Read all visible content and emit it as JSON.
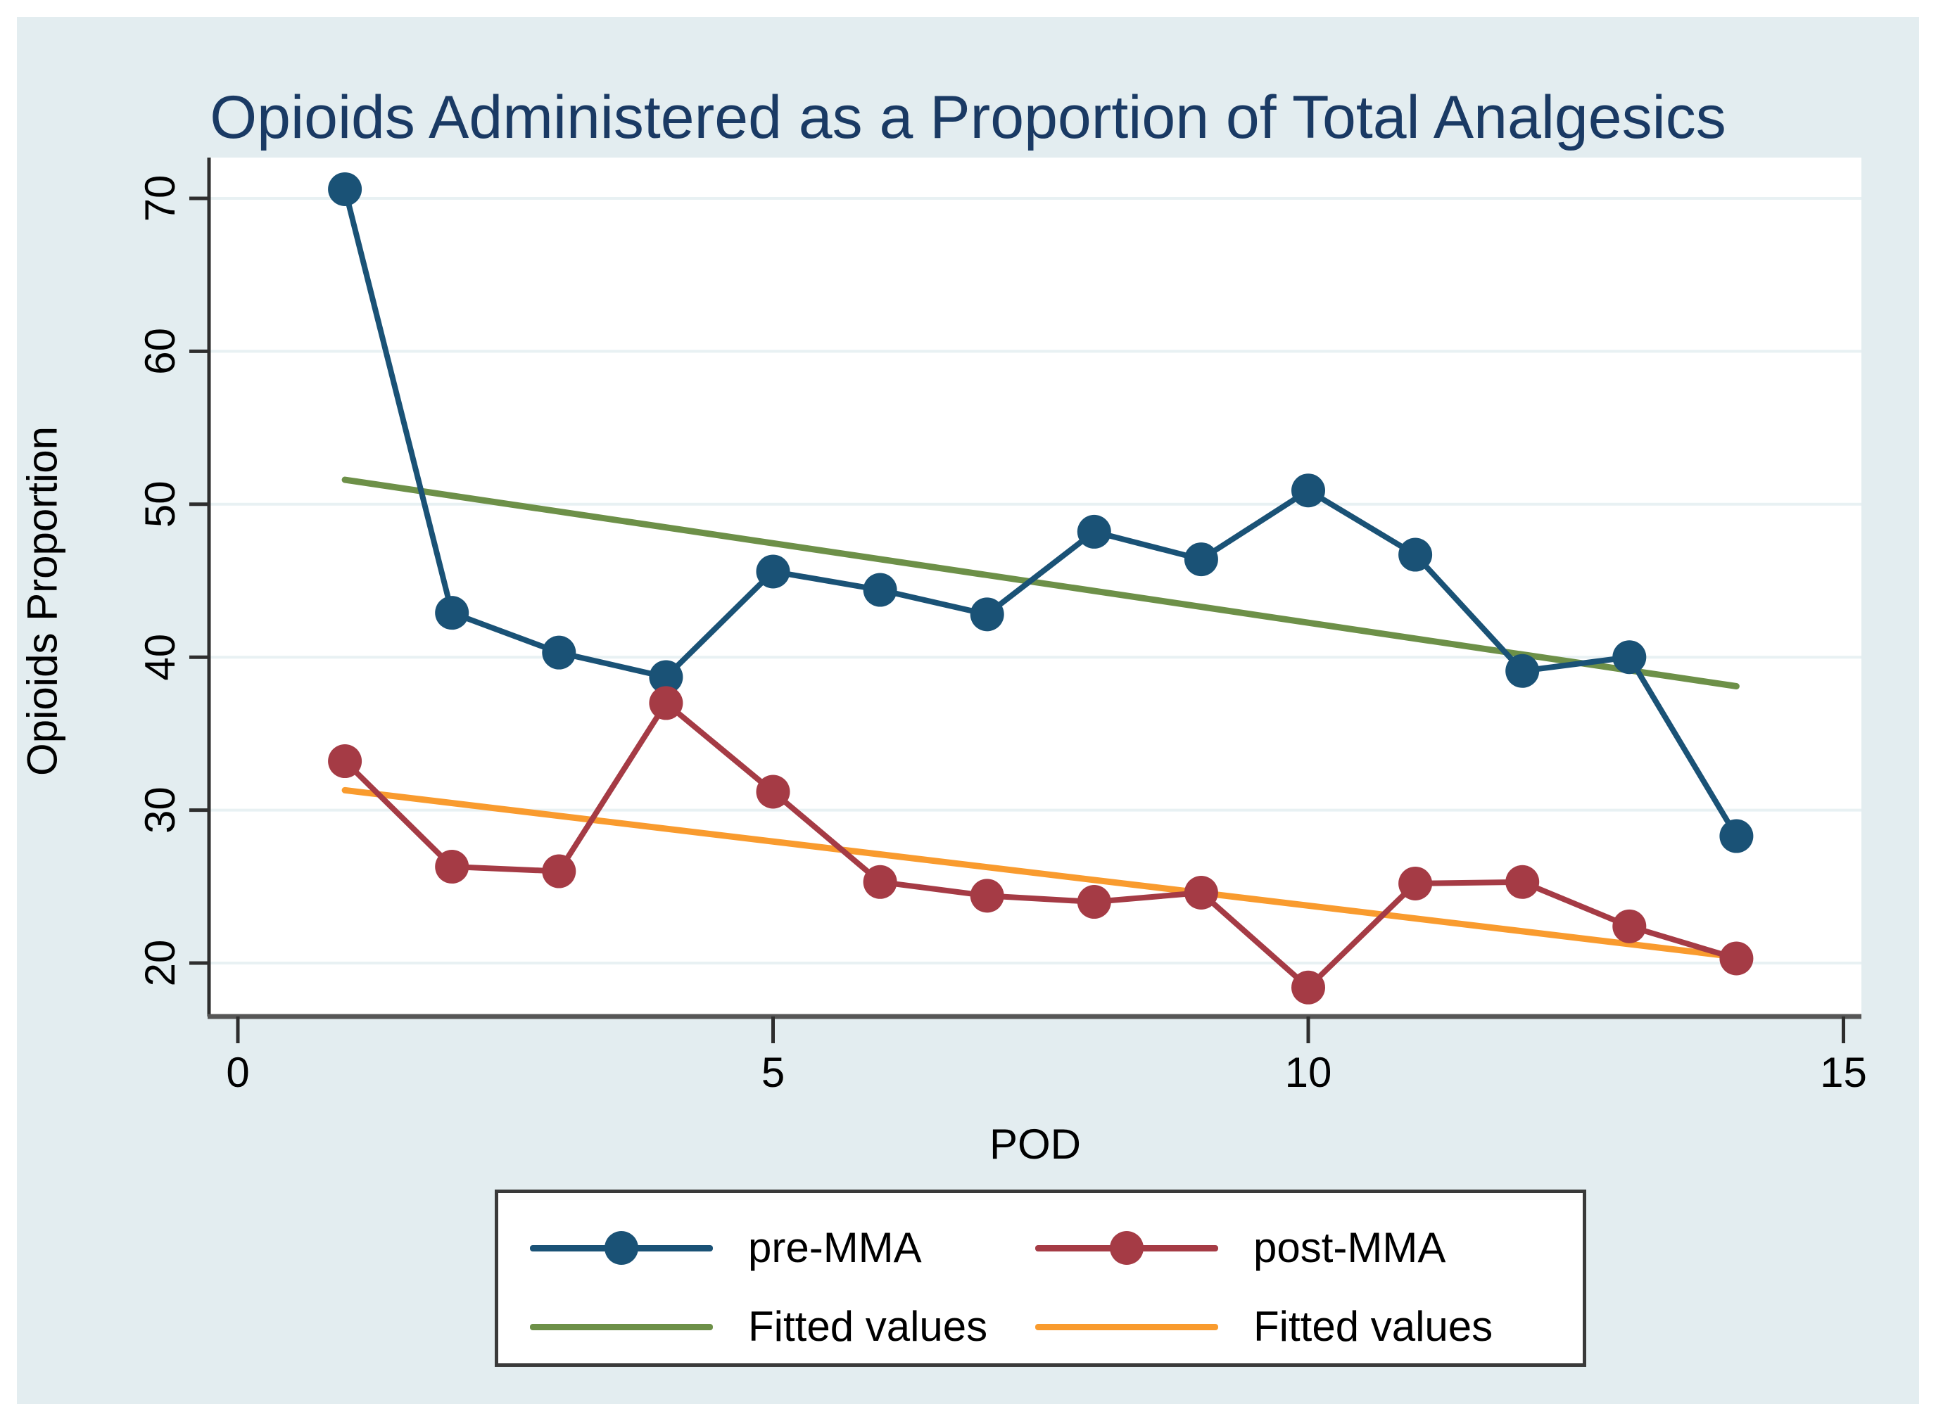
{
  "chart_data": {
    "type": "line",
    "title": "Opioids Administered as a Proportion of Total Analgesics",
    "xlabel": "POD",
    "ylabel": "Opioids Proportion",
    "xticks": [
      0,
      5,
      10,
      15
    ],
    "yticks": [
      20,
      30,
      40,
      50,
      60,
      70
    ],
    "xlim": [
      -0.3,
      15.2
    ],
    "ylim": [
      16.5,
      72.7
    ],
    "grid": "horizontal-only",
    "legend_position": "bottom",
    "x": [
      1,
      2,
      3,
      4,
      5,
      6,
      7,
      8,
      9,
      10,
      11,
      12,
      13,
      14
    ],
    "series": [
      {
        "name": "pre-MMA",
        "type": "line+marker",
        "color": "#1a5276",
        "values": [
          70.6,
          42.9,
          40.3,
          38.7,
          45.6,
          44.4,
          42.8,
          48.2,
          46.4,
          50.9,
          46.7,
          39.1,
          40.0,
          28.3
        ]
      },
      {
        "name": "post-MMA",
        "type": "line+marker",
        "color": "#a53b45",
        "values": [
          33.2,
          26.3,
          26.0,
          37.0,
          31.2,
          25.3,
          24.4,
          24.0,
          24.6,
          18.4,
          25.2,
          25.3,
          22.4,
          20.3
        ]
      },
      {
        "name": "Fitted values",
        "type": "line",
        "color": "#6d9048",
        "x": [
          1,
          14
        ],
        "values": [
          51.6,
          38.1
        ]
      },
      {
        "name": "Fitted values",
        "type": "line",
        "color": "#f99b2e",
        "x": [
          1,
          14
        ],
        "values": [
          31.3,
          20.4
        ]
      }
    ],
    "legend": [
      {
        "label": "pre-MMA",
        "color": "#1a5276",
        "marker": true
      },
      {
        "label": "post-MMA",
        "color": "#a53b45",
        "marker": true
      },
      {
        "label": "Fitted values",
        "color": "#6d9048",
        "marker": false
      },
      {
        "label": "Fitted values",
        "color": "#f99b2e",
        "marker": false
      }
    ]
  },
  "colors": {
    "background": "#e3edf0",
    "plot_background": "#ffffff",
    "gridline": "#e8f1f3",
    "y_axis": "#2e2e2e",
    "x_axis": "#565656",
    "tick": "#2e2e2e",
    "title": "#1a3a64",
    "text": "#000000",
    "legend_border": "#3a3a3a"
  }
}
